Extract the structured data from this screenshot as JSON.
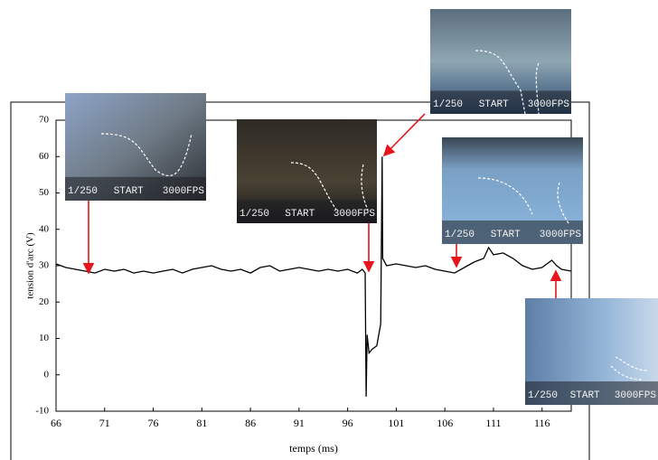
{
  "chart_data": {
    "type": "line",
    "xlabel": "temps (ms)",
    "ylabel": "tension d'arc (V)",
    "x": [
      66,
      67,
      68,
      69,
      70,
      71,
      72,
      73,
      74,
      75,
      76,
      77,
      78,
      79,
      80,
      81,
      82,
      83,
      84,
      85,
      86,
      87,
      88,
      89,
      90,
      91,
      92,
      93,
      94,
      95,
      96,
      97,
      97.5,
      97.8,
      97.9,
      98.0,
      98.2,
      98.5,
      99.0,
      99.4,
      99.55,
      99.6,
      100,
      101,
      102,
      103,
      104,
      105,
      106,
      107,
      108,
      109,
      110,
      110.5,
      111,
      112,
      113,
      114,
      115,
      116,
      117,
      117.5,
      118,
      119
    ],
    "values": [
      30.5,
      29.5,
      29,
      28.5,
      28,
      29,
      28.5,
      29,
      28,
      28.5,
      28,
      28.5,
      29,
      28,
      29,
      29.5,
      30,
      29,
      28.5,
      29,
      28,
      29.5,
      30,
      28.5,
      29,
      29.5,
      29,
      28.5,
      29,
      28.5,
      29,
      28,
      29,
      28,
      -6,
      11,
      6,
      7,
      8,
      14,
      60,
      32,
      30,
      30.5,
      30,
      29.5,
      30,
      29,
      28.5,
      28,
      29.5,
      31,
      32,
      35,
      33,
      33.5,
      32,
      30,
      29,
      29.5,
      31.5,
      30,
      29,
      28.5
    ],
    "color": "#000000",
    "xlim": [
      66,
      119
    ],
    "xticks": [
      66,
      71,
      76,
      81,
      86,
      91,
      96,
      101,
      106,
      111,
      116
    ],
    "ylim": [
      -10,
      70
    ],
    "yticks": [
      -10,
      0,
      10,
      20,
      30,
      40,
      50,
      60,
      70
    ],
    "grid": false,
    "frames": [
      [
        "1/250",
        "START",
        "3000FPS"
      ],
      [
        "1/250",
        "START",
        "3000FPS"
      ],
      [
        "1/250",
        "START",
        "3000FPS"
      ],
      [
        "1/250",
        "START",
        "3000FPS"
      ],
      [
        "1/250",
        "START",
        "3000FPS"
      ]
    ]
  }
}
